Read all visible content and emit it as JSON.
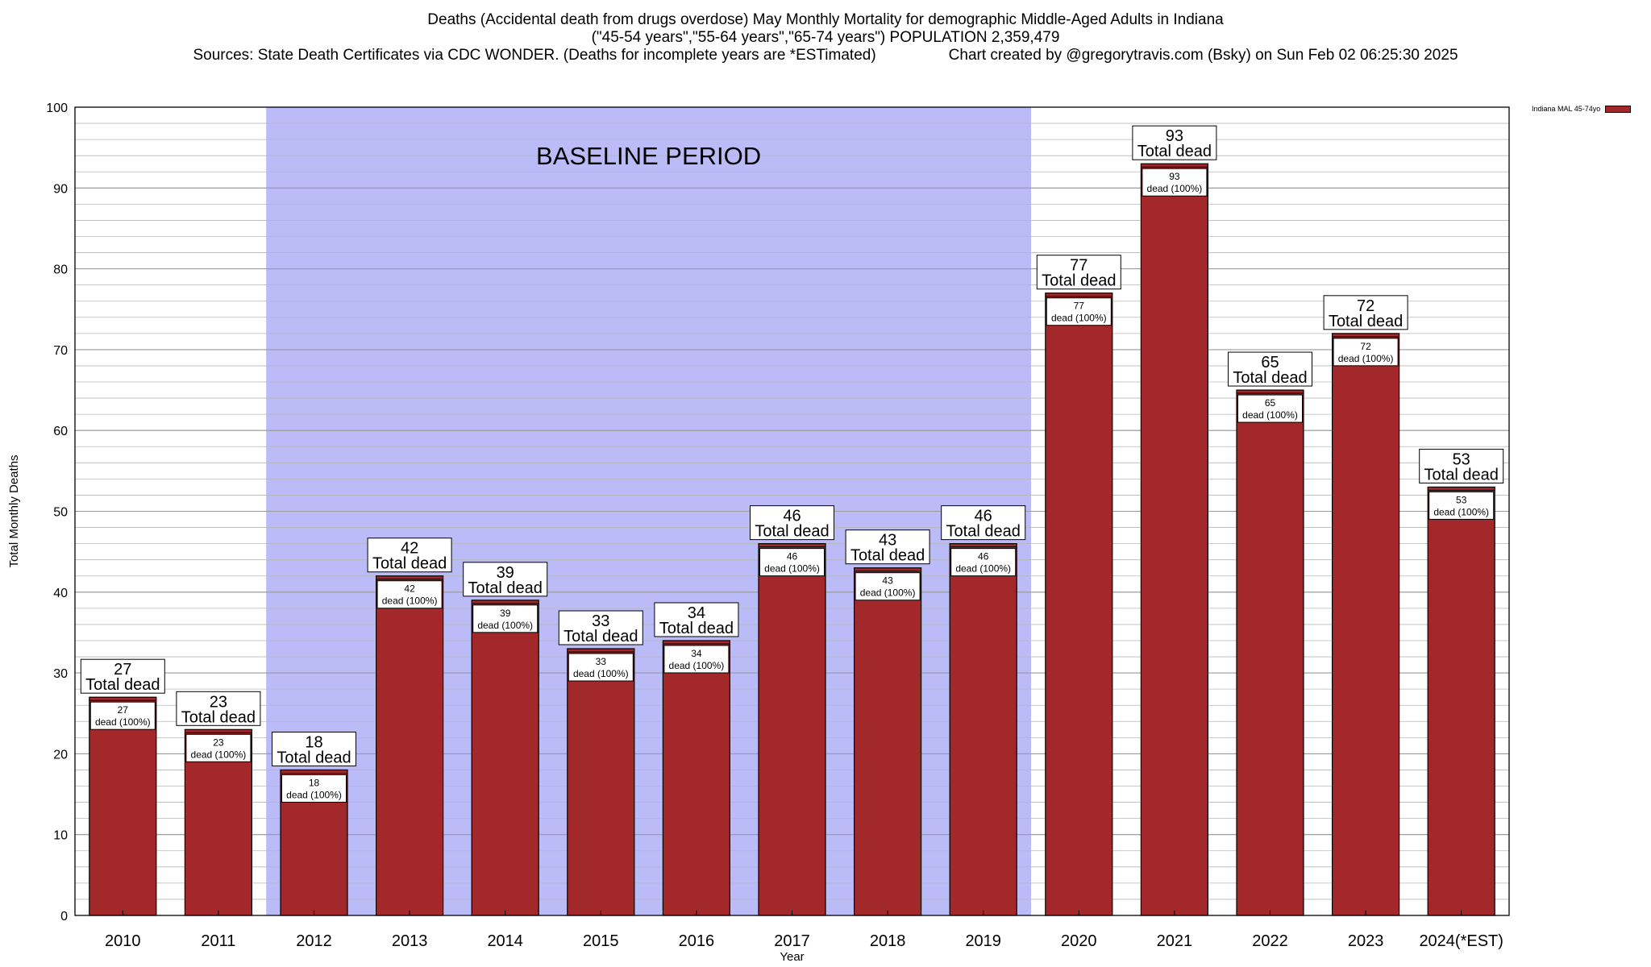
{
  "header": {
    "title_line1": "Deaths (Accidental death from drugs overdose) May Monthly Mortality for demographic Middle-Aged Adults in Indiana",
    "title_line2": "(\"45-54 years\",\"55-64 years\",\"65-74 years\") POPULATION 2,359,479",
    "sources": "Sources: State Death Certificates via CDC WONDER. (Deaths for incomplete years are *ESTimated)",
    "credit": "Chart created by @gregorytravis.com (Bsky) on Sun Feb 02 06:25:30 2025"
  },
  "chart_data": {
    "type": "bar",
    "categories": [
      "2010",
      "2011",
      "2012",
      "2013",
      "2014",
      "2015",
      "2016",
      "2017",
      "2018",
      "2019",
      "2020",
      "2021",
      "2022",
      "2023",
      "2024(*EST)"
    ],
    "series": [
      {
        "name": "Indiana MAL 45-74yo",
        "values": [
          27,
          23,
          18,
          42,
          39,
          33,
          34,
          46,
          43,
          46,
          77,
          93,
          65,
          72,
          53
        ],
        "color": "#a3282a"
      }
    ],
    "xlabel": "Year",
    "ylabel": "Total Monthly Deaths",
    "ylim": [
      0,
      100
    ],
    "yticks": [
      0,
      10,
      20,
      30,
      40,
      50,
      60,
      70,
      80,
      90,
      100
    ],
    "minor_grid_step": 2,
    "grid": true,
    "legend_position": "top-right",
    "baseline_period": {
      "label": "BASELINE PERIOD",
      "from": "2012",
      "to": "2019",
      "color": "#bbbbf8"
    },
    "bar_label_top": "Total dead",
    "bar_label_inner": "dead (100%)",
    "bar_color": "#a3282a"
  }
}
